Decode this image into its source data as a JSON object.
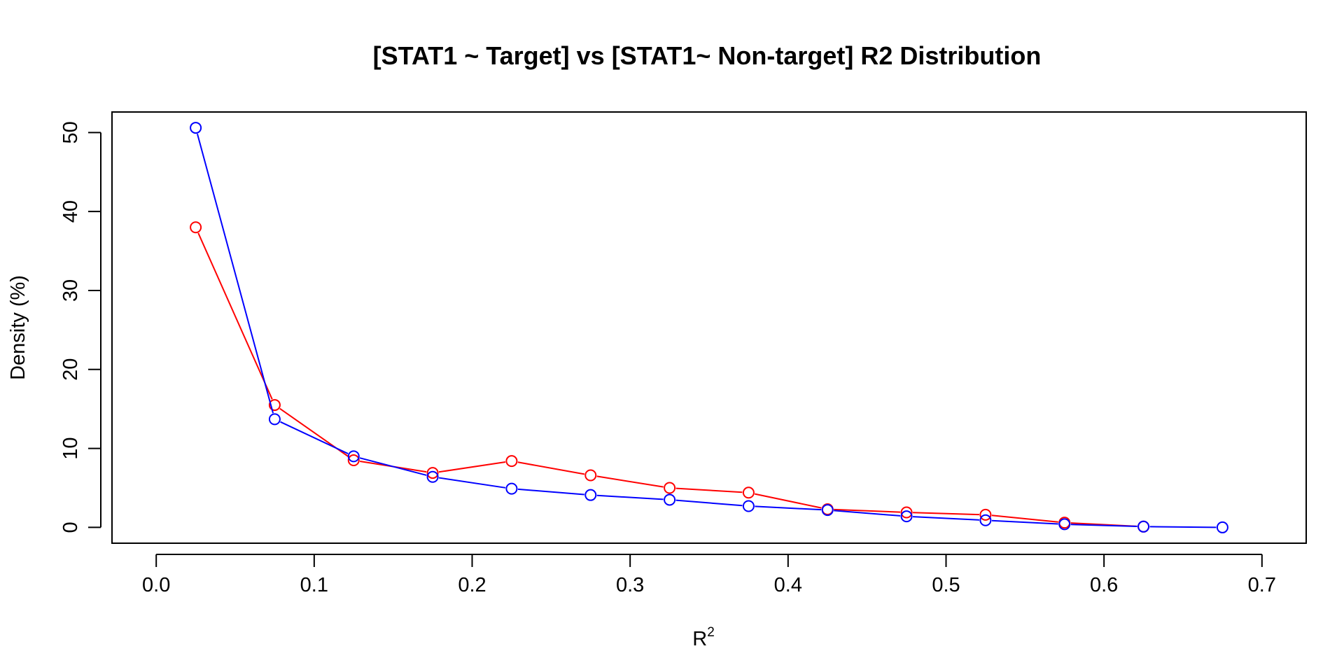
{
  "chart_data": {
    "type": "line",
    "title": "[STAT1 ~ Target] vs [STAT1~ Non-target] R2 Distribution",
    "xlabel": "R",
    "xlabel_superscript": "2",
    "ylabel": "Density (%)",
    "xlim": [
      -0.028,
      0.728
    ],
    "ylim": [
      -2.0,
      52.6
    ],
    "x_ticks": [
      0.0,
      0.1,
      0.2,
      0.3,
      0.4,
      0.5,
      0.6,
      0.7
    ],
    "x_tick_labels": [
      "0.0",
      "0.1",
      "0.2",
      "0.3",
      "0.4",
      "0.5",
      "0.6",
      "0.7"
    ],
    "y_ticks": [
      0,
      10,
      20,
      30,
      40,
      50
    ],
    "y_tick_labels": [
      "0",
      "10",
      "20",
      "30",
      "40",
      "50"
    ],
    "grid": false,
    "marker": "open-circle",
    "series": [
      {
        "color": "#ff0000",
        "x": [
          0.025,
          0.075,
          0.125,
          0.175,
          0.225,
          0.275,
          0.325,
          0.375,
          0.425,
          0.475,
          0.525,
          0.575,
          0.625
        ],
        "values": [
          38.0,
          15.5,
          8.5,
          6.9,
          8.4,
          6.6,
          5.0,
          4.4,
          2.3,
          1.9,
          1.6,
          0.6,
          0.1
        ]
      },
      {
        "color": "#0000ff",
        "x": [
          0.025,
          0.075,
          0.125,
          0.175,
          0.225,
          0.275,
          0.325,
          0.375,
          0.425,
          0.475,
          0.525,
          0.575,
          0.625,
          0.675
        ],
        "values": [
          50.6,
          13.7,
          9.0,
          6.4,
          4.9,
          4.1,
          3.5,
          2.7,
          2.2,
          1.4,
          0.9,
          0.4,
          0.1,
          0.0
        ]
      }
    ]
  }
}
